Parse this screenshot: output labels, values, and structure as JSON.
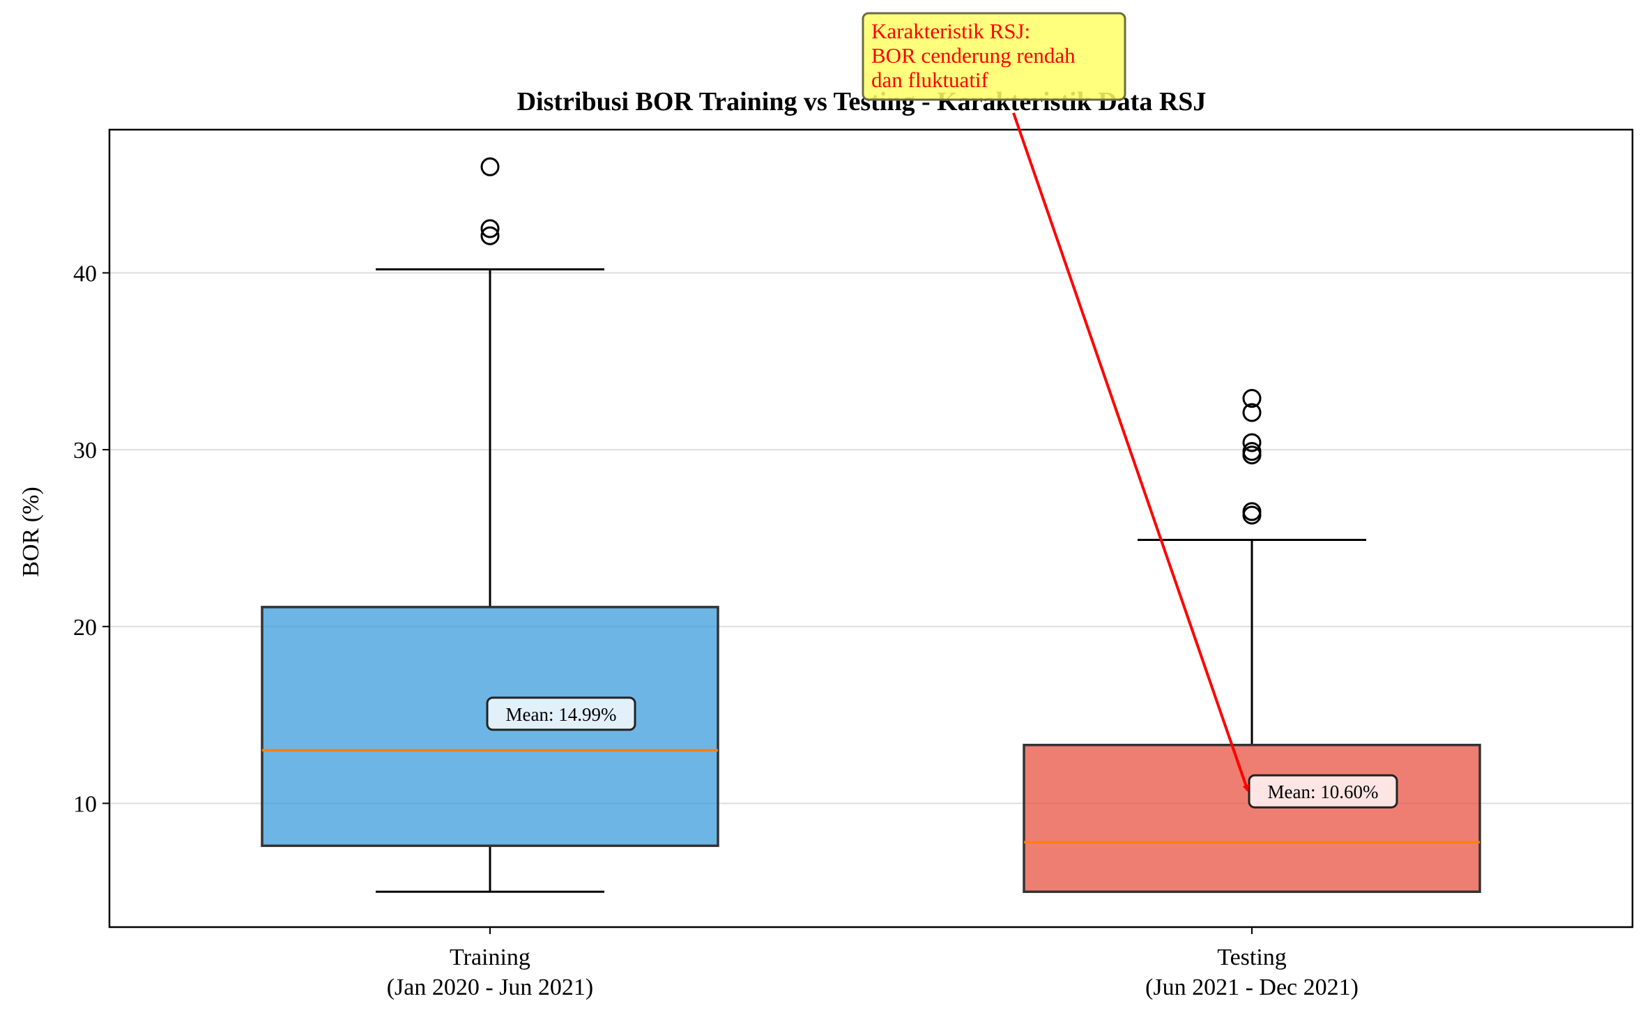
{
  "chart_data": {
    "type": "box",
    "title": "Distribusi BOR Training vs Testing - Karakteristik Data RSJ",
    "xlabel": "",
    "ylabel": "BOR (%)",
    "ylim": [
      3,
      48.1
    ],
    "yticks": [
      10,
      20,
      30,
      40
    ],
    "grid": "horizontal",
    "series": [
      {
        "label_lines": [
          "Training",
          "(Jan 2020 - Jun 2021)"
        ],
        "color": "#3498db",
        "whisker_low": 5.0,
        "q1": 7.6,
        "median": 13.0,
        "q3": 21.1,
        "whisker_high": 40.2,
        "outliers": [
          46.0,
          42.5,
          42.1
        ],
        "mean": 14.99,
        "mean_label": "Mean: 14.99%"
      },
      {
        "label_lines": [
          "Testing",
          "(Jun 2021 - Dec 2021)"
        ],
        "color": "#e74c3c",
        "whisker_low": 5.0,
        "q1": 5.0,
        "median": 7.8,
        "q3": 13.3,
        "whisker_high": 24.9,
        "outliers": [
          32.9,
          32.1,
          30.4,
          29.9,
          29.7,
          26.5,
          26.3
        ],
        "mean": 10.6,
        "mean_label": "Mean: 10.60%"
      }
    ],
    "annotation": {
      "text_lines": [
        "Karakteristik RSJ:",
        "BOR cenderung rendah",
        "dan fluktuatif"
      ],
      "color": "#ff0000",
      "box_color": "#ffff66",
      "arrow_target": {
        "series_index": 1,
        "value": 10.6
      }
    }
  }
}
